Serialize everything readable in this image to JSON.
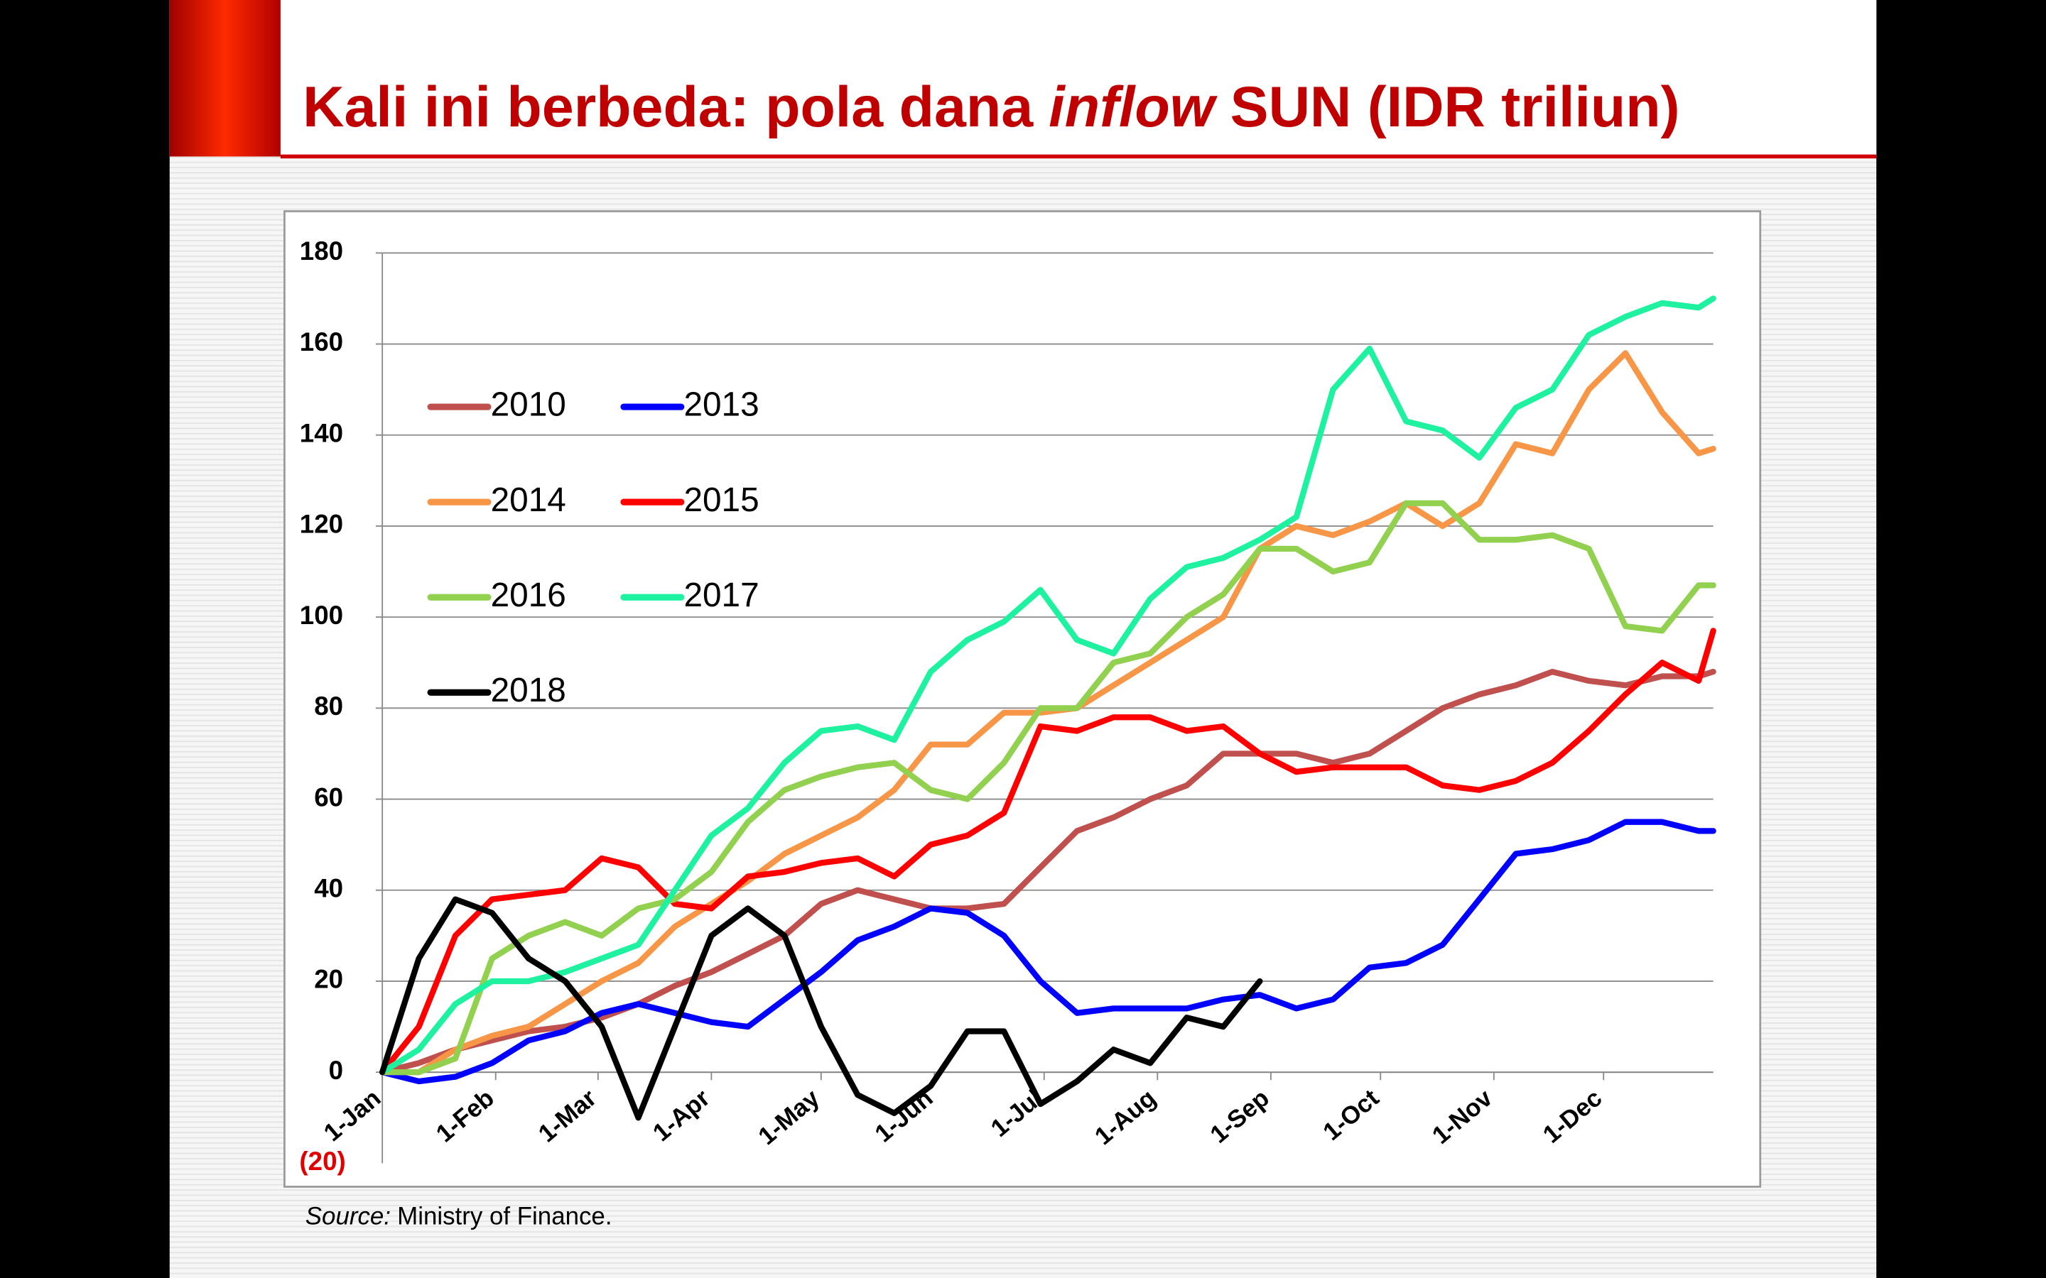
{
  "chart_data": {
    "type": "line",
    "title": [
      "Kali ini berbeda: pola dana",
      "inflow",
      "SUN (IDR triliun)"
    ],
    "source": {
      "label": "Source:",
      "text": "Ministry of Finance."
    },
    "x": [
      0,
      10,
      20,
      30,
      40,
      50,
      60,
      70,
      80,
      90,
      100,
      110,
      120,
      130,
      140,
      150,
      160,
      170,
      180,
      190,
      200,
      210,
      220,
      230,
      240,
      250,
      260,
      270,
      280,
      290,
      300,
      310,
      320,
      330,
      340,
      350,
      360,
      364
    ],
    "xlim": [
      0,
      364
    ],
    "xticks": [
      {
        "value": 0,
        "label": "1-Jan"
      },
      {
        "value": 31,
        "label": "1-Feb"
      },
      {
        "value": 59,
        "label": "1-Mar"
      },
      {
        "value": 90,
        "label": "1-Apr"
      },
      {
        "value": 120,
        "label": "1-May"
      },
      {
        "value": 151,
        "label": "1-Jun"
      },
      {
        "value": 181,
        "label": "1-Jul"
      },
      {
        "value": 212,
        "label": "1-Aug"
      },
      {
        "value": 243,
        "label": "1-Sep"
      },
      {
        "value": 273,
        "label": "1-Oct"
      },
      {
        "value": 304,
        "label": "1-Nov"
      },
      {
        "value": 334,
        "label": "1-Dec"
      }
    ],
    "ylim": [
      -20,
      180
    ],
    "yticks": [
      {
        "value": -20,
        "label": "(20)"
      },
      0,
      20,
      40,
      60,
      80,
      100,
      120,
      140,
      160,
      180
    ],
    "grid": true,
    "legend": "upper left",
    "series": [
      {
        "name": "2010",
        "color": "#c0504d",
        "values": [
          0,
          2,
          5,
          7,
          9,
          10,
          12,
          15,
          19,
          22,
          26,
          30,
          37,
          40,
          38,
          36,
          36,
          37,
          45,
          53,
          56,
          60,
          63,
          70,
          70,
          70,
          68,
          70,
          75,
          80,
          83,
          85,
          88,
          86,
          85,
          87,
          87,
          88
        ]
      },
      {
        "name": "2013",
        "color": "#0000ff",
        "values": [
          0,
          -2,
          -1,
          2,
          7,
          9,
          13,
          15,
          13,
          11,
          10,
          16,
          22,
          29,
          32,
          36,
          35,
          30,
          20,
          13,
          14,
          14,
          14,
          16,
          17,
          14,
          16,
          23,
          24,
          28,
          38,
          48,
          49,
          51,
          55,
          55,
          53,
          53
        ]
      },
      {
        "name": "2014",
        "color": "#f79646",
        "values": [
          0,
          0,
          5,
          8,
          10,
          15,
          20,
          24,
          32,
          37,
          42,
          48,
          52,
          56,
          62,
          72,
          72,
          79,
          79,
          80,
          85,
          90,
          95,
          100,
          115,
          120,
          118,
          121,
          125,
          120,
          125,
          138,
          136,
          150,
          158,
          145,
          136,
          137
        ]
      },
      {
        "name": "2015",
        "color": "#ff0000",
        "values": [
          0,
          10,
          30,
          38,
          39,
          40,
          47,
          45,
          37,
          36,
          43,
          44,
          46,
          47,
          43,
          50,
          52,
          57,
          76,
          75,
          78,
          78,
          75,
          76,
          70,
          66,
          67,
          67,
          67,
          63,
          62,
          64,
          68,
          75,
          83,
          90,
          86,
          97
        ]
      },
      {
        "name": "2016",
        "color": "#92d050",
        "values": [
          0,
          0,
          3,
          25,
          30,
          33,
          30,
          36,
          38,
          44,
          55,
          62,
          65,
          67,
          68,
          62,
          60,
          68,
          80,
          80,
          90,
          92,
          100,
          105,
          115,
          115,
          110,
          112,
          125,
          125,
          117,
          117,
          118,
          115,
          98,
          97,
          107,
          107
        ]
      },
      {
        "name": "2017",
        "color": "#1ef2a0",
        "values": [
          0,
          5,
          15,
          20,
          20,
          22,
          25,
          28,
          40,
          52,
          58,
          68,
          75,
          76,
          73,
          88,
          95,
          99,
          106,
          95,
          92,
          104,
          111,
          113,
          117,
          122,
          150,
          159,
          143,
          141,
          135,
          146,
          150,
          162,
          166,
          169,
          168,
          170
        ]
      },
      {
        "name": "2018",
        "color": "#000000",
        "values": [
          0,
          25,
          38,
          35,
          25,
          20,
          10,
          -10,
          10,
          30,
          36,
          30,
          10,
          -5,
          -9,
          -3,
          9,
          9,
          -7,
          -2,
          5,
          2,
          12,
          10,
          20,
          null,
          null,
          null,
          null,
          null,
          null,
          null,
          null,
          null,
          null,
          null,
          null,
          null
        ]
      }
    ]
  }
}
